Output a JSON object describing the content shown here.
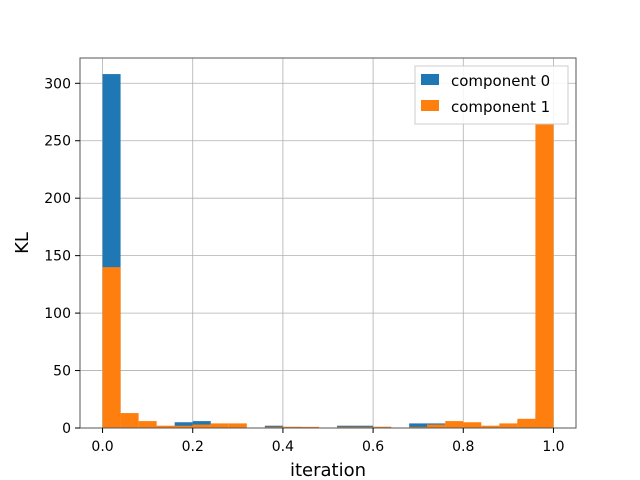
{
  "chart_data": {
    "type": "bar",
    "title": "",
    "xlabel": "iteration",
    "ylabel": "KL",
    "xlim": [
      -0.05,
      1.05
    ],
    "ylim": [
      0,
      322
    ],
    "xticks": [
      0.0,
      0.2,
      0.4,
      0.6,
      0.8,
      1.0
    ],
    "xtick_labels": [
      "0.0",
      "0.2",
      "0.4",
      "0.6",
      "0.8",
      "1.0"
    ],
    "yticks": [
      0,
      50,
      100,
      150,
      200,
      250,
      300
    ],
    "ytick_labels": [
      "0",
      "50",
      "100",
      "150",
      "200",
      "250",
      "300"
    ],
    "grid": true,
    "legend_position": "top-right",
    "bin_width": 0.04,
    "bin_starts": [
      0.0,
      0.04,
      0.08,
      0.12,
      0.16,
      0.2,
      0.24,
      0.28,
      0.32,
      0.36,
      0.4,
      0.44,
      0.48,
      0.52,
      0.56,
      0.6,
      0.64,
      0.68,
      0.72,
      0.76,
      0.8,
      0.84,
      0.88,
      0.92,
      0.96
    ],
    "series": [
      {
        "name": "component 0",
        "color": "#1f77b4",
        "values": [
          308,
          0,
          0,
          1,
          5,
          6,
          0,
          0,
          0,
          2,
          1,
          0,
          0,
          2,
          2,
          1,
          0,
          4,
          4,
          0,
          0,
          0,
          0,
          6,
          13
        ]
      },
      {
        "name": "component 1",
        "color": "#ff7f0e",
        "values": [
          140,
          13,
          6,
          2,
          2,
          3,
          4,
          4,
          0,
          1,
          1,
          1,
          0,
          1,
          1,
          1,
          0,
          1,
          3,
          6,
          5,
          2,
          4,
          8,
          265
        ]
      }
    ]
  }
}
